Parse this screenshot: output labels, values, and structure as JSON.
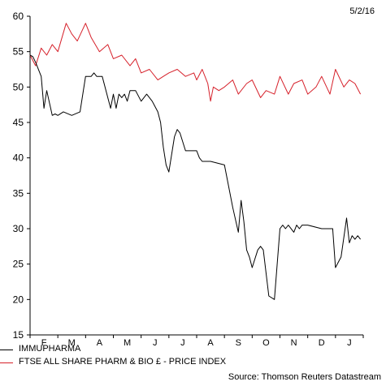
{
  "header": {
    "date": "5/2/16"
  },
  "source": "Source: Thomson Reuters Datastream",
  "colors": {
    "immupharma": "#000000",
    "ftse": "#d6202a"
  },
  "chart_data": {
    "type": "line",
    "title": "",
    "xlabel": "",
    "ylabel": "",
    "ylim": [
      15,
      60
    ],
    "y_ticks": [
      15,
      20,
      25,
      30,
      35,
      40,
      45,
      50,
      55,
      60
    ],
    "x_tick_labels": [
      "F",
      "M",
      "A",
      "M",
      "J",
      "J",
      "A",
      "S",
      "O",
      "N",
      "D",
      "J"
    ],
    "grid": false,
    "legend_position": "bottom-left",
    "series": [
      {
        "name": "IMMUPHARMA",
        "color": "#000000",
        "t": [
          0,
          0.1,
          0.2,
          0.4,
          0.5,
          0.6,
          0.8,
          0.9,
          1.0,
          1.2,
          1.5,
          1.8,
          2.0,
          2.2,
          2.3,
          2.4,
          2.6,
          2.9,
          3.0,
          3.1,
          3.2,
          3.3,
          3.4,
          3.5,
          3.6,
          3.8,
          4.0,
          4.2,
          4.4,
          4.6,
          4.7,
          4.8,
          4.9,
          5.0,
          5.2,
          5.3,
          5.4,
          5.6,
          5.8,
          6.0,
          6.1,
          6.2,
          6.5,
          7.0,
          7.3,
          7.5,
          7.6,
          7.7,
          7.8,
          7.9,
          8.0,
          8.2,
          8.3,
          8.4,
          8.6,
          8.8,
          9.0,
          9.1,
          9.2,
          9.3,
          9.5,
          9.6,
          9.7,
          9.8,
          10.0,
          10.5,
          10.9,
          11.0,
          11.2,
          11.4,
          11.5,
          11.6,
          11.7,
          11.8,
          11.9
        ],
        "values": [
          54.5,
          54.3,
          53.5,
          51.5,
          47.0,
          49.5,
          46.0,
          46.2,
          46.0,
          46.5,
          46.0,
          46.5,
          51.5,
          51.5,
          52.0,
          51.5,
          51.5,
          47.0,
          49.0,
          47.0,
          49.0,
          48.5,
          49.0,
          48.0,
          49.5,
          49.5,
          48.0,
          49.0,
          48.0,
          46.5,
          45.0,
          41.5,
          39.0,
          38.0,
          43.0,
          44.0,
          43.5,
          41.0,
          41.0,
          41.0,
          40.0,
          39.5,
          39.5,
          39.0,
          33.0,
          29.5,
          34.0,
          31.0,
          27.0,
          26.0,
          24.5,
          27.0,
          27.5,
          27.0,
          20.5,
          20.0,
          30.0,
          30.5,
          30.0,
          30.5,
          29.5,
          30.5,
          30.0,
          30.5,
          30.5,
          30.0,
          30.0,
          24.5,
          26.0,
          31.5,
          28.0,
          29.0,
          28.5,
          29.0,
          28.5
        ]
      },
      {
        "name": "FTSE ALL SHARE PHARM & BIO £ - PRICE INDEX",
        "color": "#d6202a",
        "t": [
          0,
          0.2,
          0.4,
          0.6,
          0.8,
          1.0,
          1.3,
          1.5,
          1.7,
          2.0,
          2.2,
          2.5,
          2.8,
          3.0,
          3.3,
          3.6,
          3.8,
          4.0,
          4.3,
          4.6,
          4.8,
          5.0,
          5.3,
          5.6,
          5.9,
          6.0,
          6.2,
          6.4,
          6.5,
          6.6,
          6.8,
          7.0,
          7.3,
          7.5,
          7.8,
          8.0,
          8.3,
          8.5,
          8.8,
          9.0,
          9.3,
          9.5,
          9.8,
          10.0,
          10.3,
          10.5,
          10.8,
          11.0,
          11.3,
          11.5,
          11.7,
          11.9
        ],
        "values": [
          54.5,
          53.0,
          55.5,
          54.5,
          56.0,
          55.0,
          59.0,
          57.5,
          56.5,
          59.0,
          57.0,
          55.0,
          56.0,
          54.0,
          54.5,
          53.0,
          54.0,
          52.0,
          52.5,
          51.0,
          51.5,
          52.0,
          52.5,
          51.5,
          52.0,
          51.0,
          52.5,
          50.5,
          48.0,
          50.0,
          49.5,
          50.0,
          51.0,
          49.0,
          50.5,
          51.0,
          48.5,
          49.5,
          49.0,
          51.5,
          49.0,
          50.5,
          51.0,
          49.0,
          50.0,
          51.5,
          49.0,
          52.5,
          50.0,
          51.0,
          50.5,
          49.0
        ]
      }
    ]
  }
}
